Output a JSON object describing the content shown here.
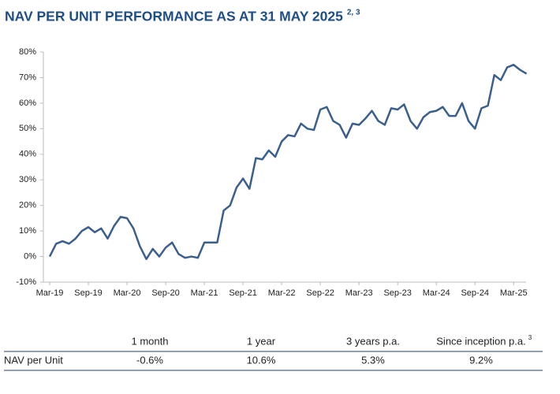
{
  "chart_data": {
    "type": "line",
    "title": "NAV PER UNIT PERFORMANCE AS AT 31 MAY 2025",
    "title_note": "2, 3",
    "categories": [
      "Mar-19",
      null,
      null,
      null,
      null,
      null,
      "Sep-19",
      null,
      null,
      null,
      null,
      null,
      "Mar-20",
      null,
      null,
      null,
      null,
      null,
      "Sep-20",
      null,
      null,
      null,
      null,
      null,
      "Mar-21",
      null,
      null,
      null,
      null,
      null,
      "Sep-21",
      null,
      null,
      null,
      null,
      null,
      "Mar-22",
      null,
      null,
      null,
      null,
      null,
      "Sep-22",
      null,
      null,
      null,
      null,
      null,
      "Mar-23",
      null,
      null,
      null,
      null,
      null,
      "Sep-23",
      null,
      null,
      null,
      null,
      null,
      "Mar-24",
      null,
      null,
      null,
      null,
      null,
      "Sep-24",
      null,
      null,
      null,
      null,
      null,
      "Mar-25",
      null,
      null
    ],
    "values": [
      0,
      5,
      6,
      5,
      7,
      10,
      11.5,
      9.5,
      11,
      7,
      12,
      15.5,
      15,
      11,
      4,
      -1,
      3,
      0,
      3.5,
      5.5,
      1,
      -0.5,
      0,
      -0.5,
      5.5,
      5.5,
      5.5,
      18,
      20,
      27,
      30.5,
      26.5,
      38.5,
      38,
      41.5,
      39,
      45,
      47.5,
      47,
      52,
      50,
      49.5,
      57.5,
      58.5,
      53,
      51.5,
      46.5,
      52,
      51.5,
      54,
      57,
      53,
      51.5,
      58,
      57.5,
      59.5,
      53,
      50,
      54.5,
      56.5,
      57,
      58.5,
      55,
      55,
      60,
      53,
      50,
      58,
      59,
      71,
      69,
      74,
      75,
      73,
      71.5
    ],
    "color": "#3b5f8c",
    "ylim": [
      -10,
      80
    ],
    "yticks": [
      {
        "value": -10,
        "label": "-10%"
      },
      {
        "value": 0,
        "label": "0%"
      },
      {
        "value": 10,
        "label": "10%"
      },
      {
        "value": 20,
        "label": "20%"
      },
      {
        "value": 30,
        "label": "30%"
      },
      {
        "value": 40,
        "label": "40%"
      },
      {
        "value": 50,
        "label": "50%"
      },
      {
        "value": 60,
        "label": "60%"
      },
      {
        "value": 70,
        "label": "70%"
      },
      {
        "value": 80,
        "label": "80%"
      }
    ],
    "grid": false
  },
  "table": {
    "columns": [
      "1 month",
      "1 year",
      "3 years p.a.",
      "Since inception p.a."
    ],
    "column_note": "3",
    "rows": [
      [
        "NAV per Unit",
        "-0.6%",
        "10.6%",
        "5.3%",
        "9.2%"
      ]
    ]
  }
}
